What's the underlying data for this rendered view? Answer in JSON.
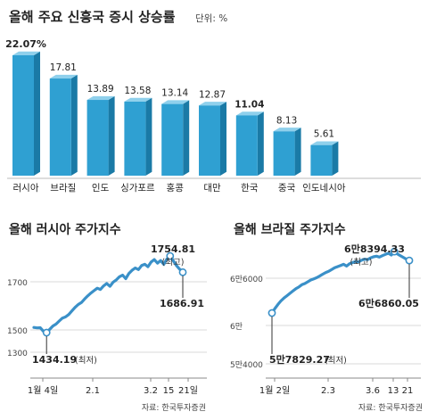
{
  "colors": {
    "bar_front": "#2fa0d2",
    "bar_side": "#1a7aa6",
    "bar_top": "#8fd0ec",
    "highlight_bar": "#2fa0d2",
    "line": "#3a90c8",
    "text": "#222222",
    "grid": "#d9d9d9"
  },
  "chart_data": [
    {
      "type": "bar",
      "title": "올해 주요 신흥국 증시 상승률",
      "unit": "단위: %",
      "categories": [
        "러시아",
        "브라질",
        "인도",
        "싱가포르",
        "홍콩",
        "대만",
        "한국",
        "중국",
        "인도네시아"
      ],
      "values": [
        22.07,
        17.81,
        13.89,
        13.58,
        13.14,
        12.87,
        11.04,
        8.13,
        5.61
      ],
      "value_labels": [
        "22.07%",
        "17.81",
        "13.89",
        "13.58",
        "13.14",
        "12.87",
        "11.04",
        "8.13",
        "5.61"
      ],
      "bold_labels": [
        true,
        false,
        false,
        false,
        false,
        false,
        true,
        false,
        false
      ],
      "ylim": [
        0,
        24
      ],
      "grid": false
    },
    {
      "type": "line",
      "title": "올해 러시아 주가지수",
      "source": "자료: 한국투자증권",
      "x_ticks": [
        "1월 4일",
        "2.1",
        "3.2",
        "15",
        "21일"
      ],
      "y_ticks": [
        "1300",
        "1500",
        "1700"
      ],
      "ylim": [
        1300,
        1800
      ],
      "low": {
        "value": 1434.19,
        "label": "1434.19",
        "note": "(최저)"
      },
      "high": {
        "value": 1754.81,
        "label": "1754.81",
        "note": "(최고)"
      },
      "last": {
        "value": 1686.91,
        "label": "1686.91"
      },
      "values": [
        1456,
        1454,
        1455,
        1440,
        1434.19,
        1448,
        1462,
        1470,
        1483,
        1495,
        1500,
        1510,
        1525,
        1540,
        1552,
        1560,
        1575,
        1588,
        1600,
        1610,
        1620,
        1615,
        1630,
        1640,
        1628,
        1645,
        1655,
        1668,
        1675,
        1660,
        1682,
        1695,
        1705,
        1698,
        1715,
        1720,
        1710,
        1730,
        1740,
        1725,
        1736,
        1720,
        1742,
        1754.81,
        1735,
        1715,
        1700,
        1686.91
      ],
      "grid": false
    },
    {
      "type": "line",
      "title": "올해 브라질 주가지수",
      "source": "자료: 한국투자증권",
      "x_ticks": [
        "1월 2일",
        "2.3",
        "3.6",
        "13",
        "21"
      ],
      "y_ticks": [
        "5만4000",
        "6만",
        "6만6000"
      ],
      "ylim": [
        54000,
        67800
      ],
      "low": {
        "value": 57829.27,
        "label": "5만7829.27",
        "note": "(최저)"
      },
      "high": {
        "value": 68394.33,
        "label": "6만8394.33",
        "note": "(최고)"
      },
      "last": {
        "value": 66860.05,
        "label": "6만6860.05"
      },
      "values": [
        57829.27,
        58600,
        59300,
        59900,
        60400,
        60800,
        61200,
        61600,
        62000,
        62300,
        62700,
        62900,
        63200,
        63500,
        63700,
        63900,
        64200,
        64500,
        64800,
        65000,
        65300,
        65600,
        65800,
        66000,
        66200,
        65900,
        66300,
        66500,
        66700,
        66600,
        66900,
        67100,
        67000,
        67300,
        67500,
        67600,
        67450,
        67700,
        67900,
        68100,
        67800,
        68394.33,
        68000,
        67700,
        67400,
        67100,
        66860.05
      ],
      "grid": false
    }
  ]
}
